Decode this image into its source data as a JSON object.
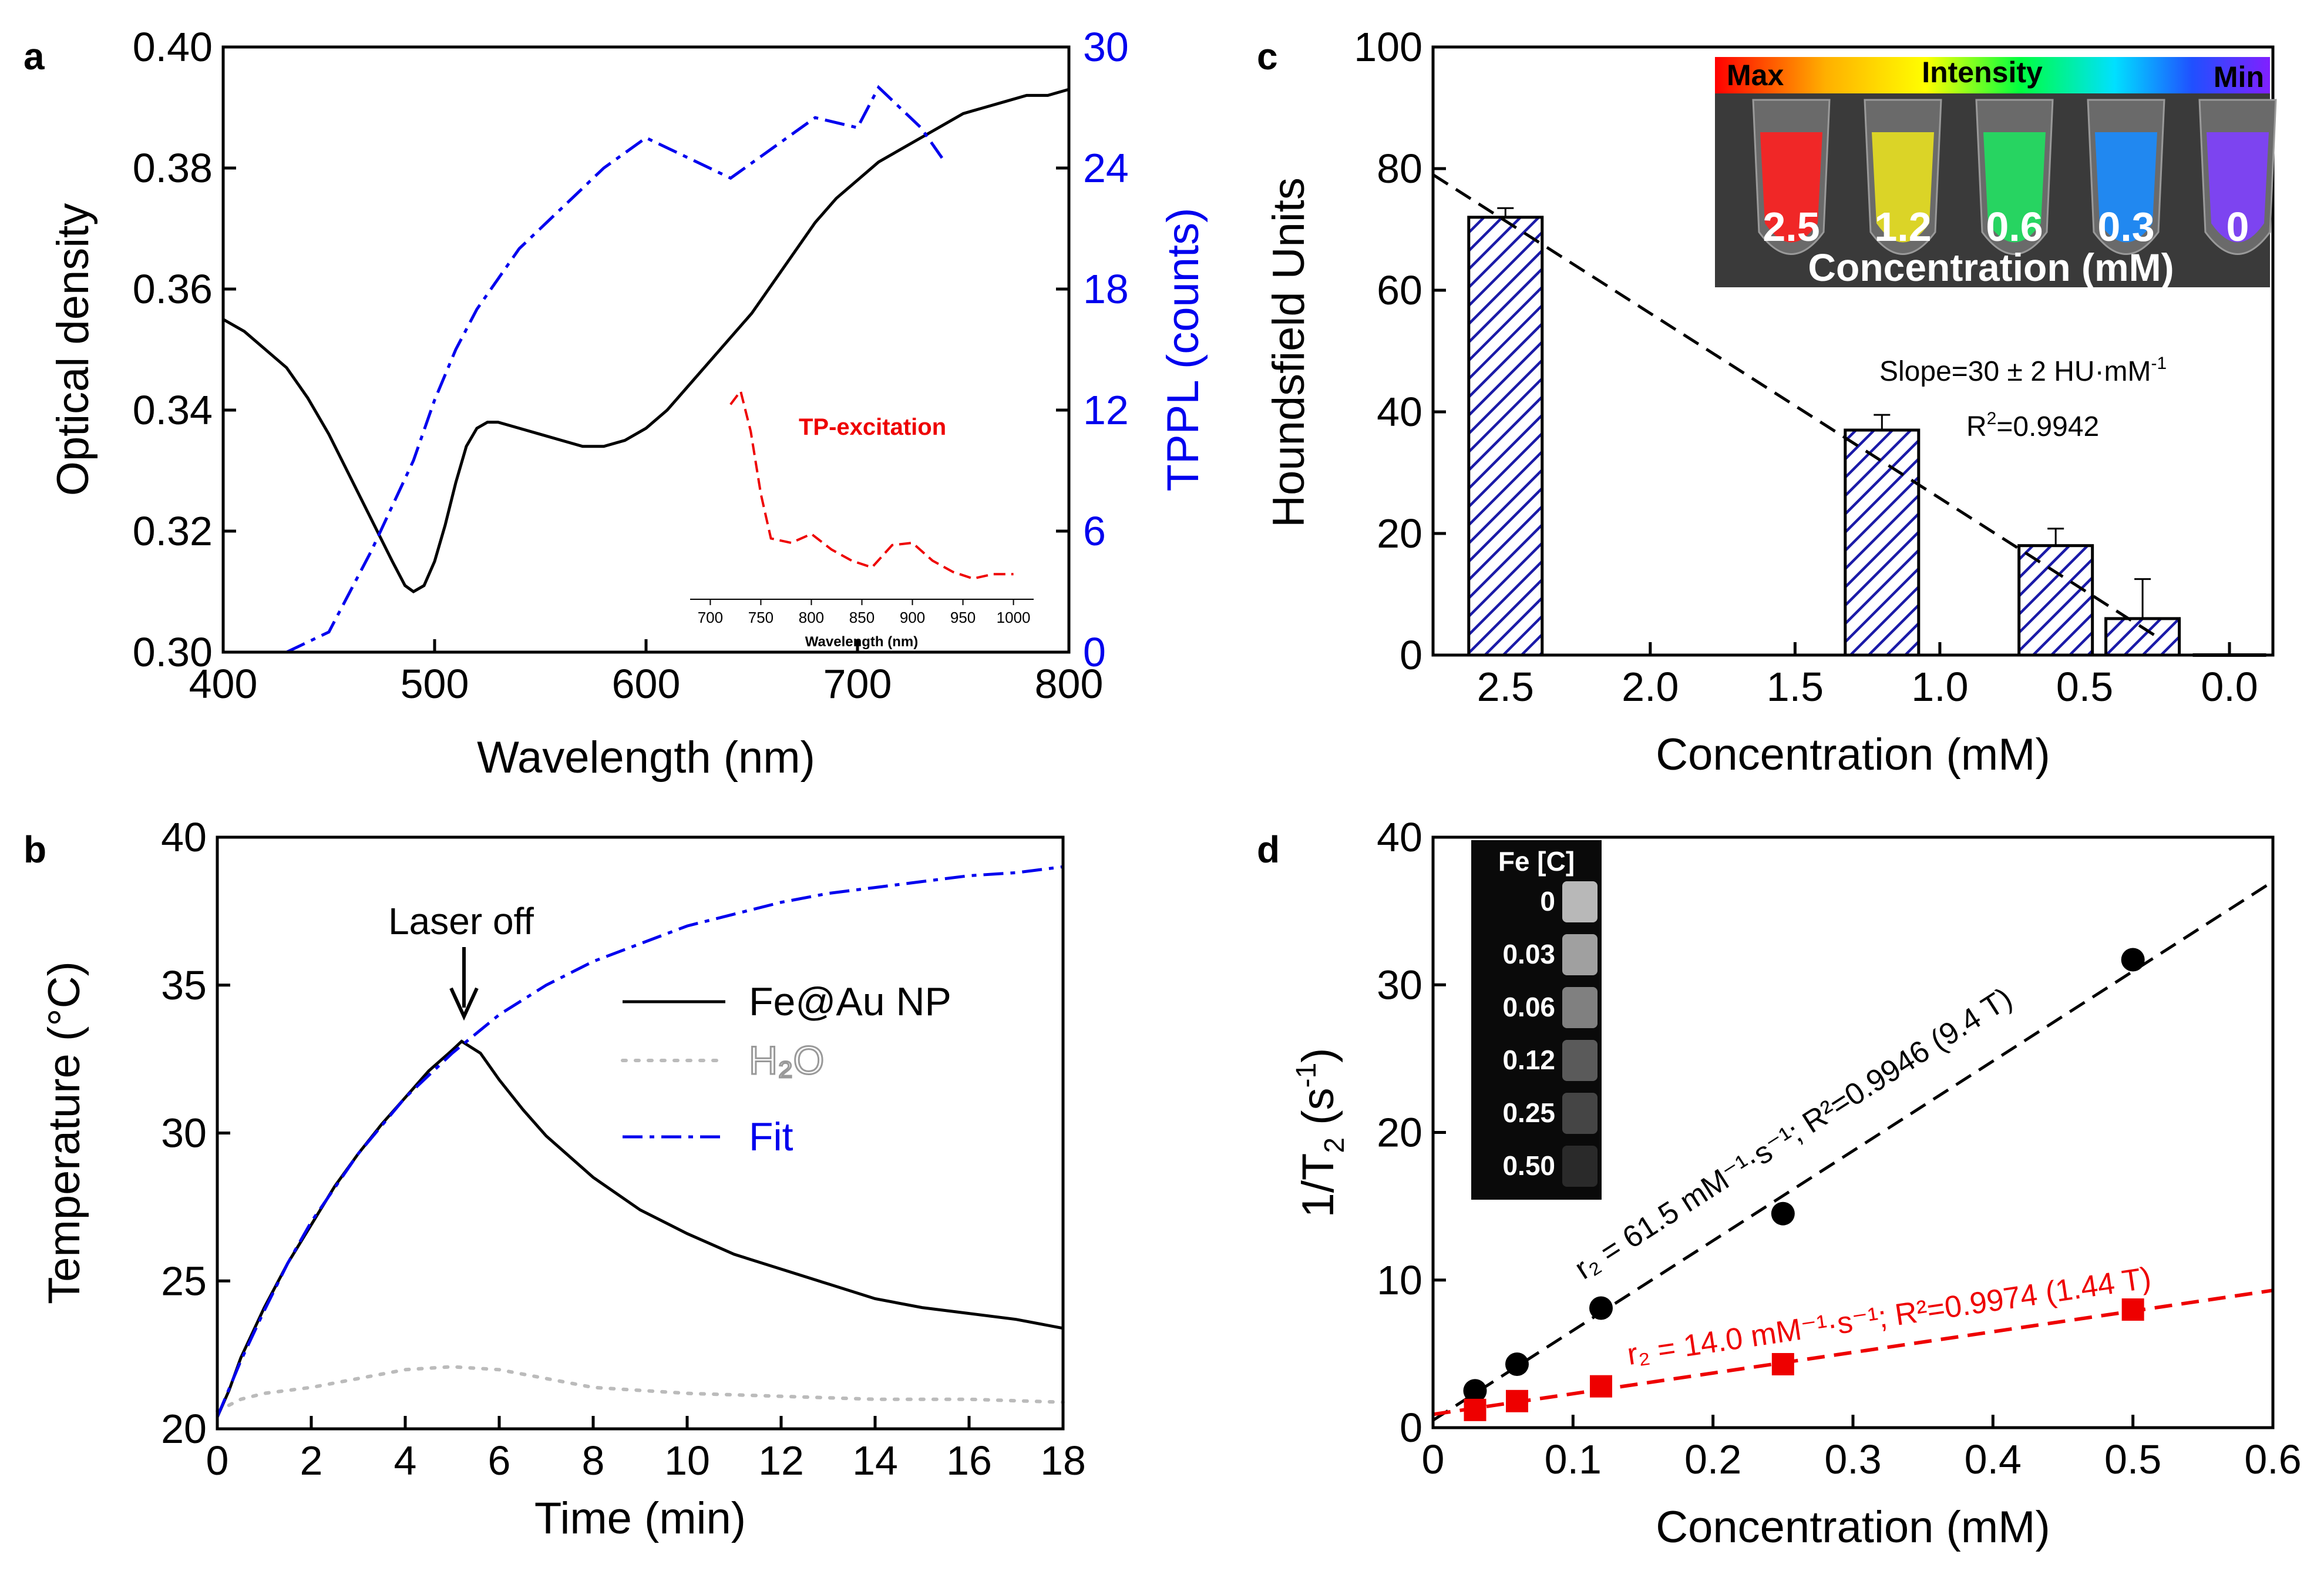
{
  "chart_data": [
    {
      "panel": "a",
      "type": "line",
      "xlabel": "Wavelength (nm)",
      "ylabel": "Optical density",
      "y2label": "TPPL (counts)",
      "xlim": [
        400,
        800
      ],
      "ylim": [
        0.3,
        0.4
      ],
      "y2lim": [
        0,
        30
      ],
      "xticks": [
        "400",
        "500",
        "600",
        "700",
        "800"
      ],
      "yticks": [
        "0.30",
        "0.32",
        "0.34",
        "0.36",
        "0.38",
        "0.40"
      ],
      "y2ticks": [
        "0",
        "6",
        "12",
        "18",
        "24",
        "30"
      ],
      "series": [
        {
          "name": "Optical density",
          "axis": "left",
          "color": "#000000",
          "style": "solid",
          "x": [
            400,
            410,
            420,
            430,
            440,
            450,
            460,
            470,
            480,
            486,
            490,
            495,
            500,
            505,
            510,
            515,
            520,
            525,
            530,
            540,
            550,
            560,
            570,
            580,
            590,
            600,
            610,
            620,
            630,
            640,
            650,
            660,
            670,
            680,
            690,
            700,
            710,
            720,
            730,
            740,
            750,
            760,
            770,
            780,
            790,
            800
          ],
          "y": [
            0.355,
            0.353,
            0.35,
            0.347,
            0.342,
            0.336,
            0.329,
            0.322,
            0.315,
            0.311,
            0.31,
            0.311,
            0.315,
            0.321,
            0.328,
            0.334,
            0.337,
            0.338,
            0.338,
            0.337,
            0.336,
            0.335,
            0.334,
            0.334,
            0.335,
            0.337,
            0.34,
            0.344,
            0.348,
            0.352,
            0.356,
            0.361,
            0.366,
            0.371,
            0.375,
            0.378,
            0.381,
            0.383,
            0.385,
            0.387,
            0.389,
            0.39,
            0.391,
            0.392,
            0.392,
            0.393
          ]
        },
        {
          "name": "TPPL",
          "axis": "right",
          "color": "#0000ee",
          "style": "dashdot",
          "x": [
            430,
            450,
            470,
            490,
            500,
            510,
            520,
            530,
            540,
            550,
            560,
            580,
            600,
            620,
            640,
            660,
            680,
            700,
            710,
            720,
            730,
            740
          ],
          "y": [
            0,
            1,
            5,
            9.5,
            12.5,
            15,
            17,
            18.5,
            20,
            21,
            22,
            24,
            25.5,
            24.5,
            23.5,
            25,
            26.5,
            26,
            28,
            27,
            26,
            24.5
          ]
        }
      ],
      "inset": {
        "name": "TP-excitation",
        "color": "#ee0000",
        "xlabel": "Wavelength (nm)",
        "xticks": [
          "700",
          "750",
          "800",
          "850",
          "900",
          "950",
          "1000"
        ],
        "xlim": [
          680,
          1020
        ],
        "ylim": [
          0,
          1
        ],
        "x": [
          720,
          730,
          740,
          750,
          760,
          780,
          800,
          820,
          840,
          860,
          880,
          900,
          920,
          940,
          960,
          980,
          1000
        ],
        "y": [
          0.82,
          0.88,
          0.7,
          0.42,
          0.22,
          0.2,
          0.24,
          0.17,
          0.12,
          0.09,
          0.19,
          0.2,
          0.12,
          0.07,
          0.04,
          0.06,
          0.06
        ]
      }
    },
    {
      "panel": "b",
      "type": "line",
      "xlabel": "Time (min)",
      "ylabel": "Temperature (°C)",
      "annotation": "Laser off",
      "xlim": [
        0,
        18
      ],
      "ylim": [
        20,
        40
      ],
      "xticks": [
        "0",
        "2",
        "4",
        "6",
        "8",
        "10",
        "12",
        "14",
        "16",
        "18"
      ],
      "yticks": [
        "20",
        "25",
        "30",
        "35",
        "40"
      ],
      "series": [
        {
          "name": "Fe@Au NP",
          "color": "#000000",
          "style": "solid",
          "x": [
            0,
            0.25,
            0.5,
            1,
            1.5,
            2,
            2.5,
            3,
            3.5,
            4,
            4.5,
            5,
            5.2,
            5.6,
            6,
            6.5,
            7,
            8,
            9,
            10,
            11,
            12,
            13,
            14,
            15,
            16,
            17,
            18
          ],
          "y": [
            20.4,
            21.3,
            22.4,
            24.1,
            25.6,
            26.9,
            28.2,
            29.3,
            30.3,
            31.2,
            32.1,
            32.8,
            33.1,
            32.7,
            31.8,
            30.8,
            29.9,
            28.5,
            27.4,
            26.6,
            25.9,
            25.4,
            24.9,
            24.4,
            24.1,
            23.9,
            23.7,
            23.4
          ]
        },
        {
          "name": "H₂O",
          "color": "#bbbbbb",
          "style": "dotted",
          "x": [
            0,
            0.5,
            1,
            2,
            3,
            4,
            5,
            6,
            7,
            8,
            9,
            10,
            12,
            14,
            16,
            18
          ],
          "y": [
            20.6,
            21.0,
            21.2,
            21.4,
            21.7,
            22.0,
            22.1,
            22.0,
            21.7,
            21.4,
            21.3,
            21.2,
            21.1,
            21.0,
            21.0,
            20.9
          ]
        },
        {
          "name": "Fit",
          "color": "#0000ee",
          "style": "dashdot",
          "x": [
            0,
            0.5,
            1,
            1.5,
            2,
            3,
            4,
            5,
            6,
            7,
            8,
            9,
            10,
            11,
            12,
            13,
            14,
            15,
            16,
            17,
            18
          ],
          "y": [
            20.4,
            22.3,
            24.0,
            25.6,
            27.0,
            29.3,
            31.2,
            32.7,
            34.0,
            35.0,
            35.8,
            36.4,
            37.0,
            37.4,
            37.8,
            38.1,
            38.3,
            38.5,
            38.7,
            38.8,
            39.0
          ]
        }
      ]
    },
    {
      "panel": "c",
      "type": "bar",
      "xlabel": "Concentration (mM)",
      "ylabel": "Houndsfield  Units",
      "xlim": [
        2.75,
        -0.15
      ],
      "ylim": [
        0,
        100
      ],
      "xticks": [
        "2.5",
        "2.0",
        "1.5",
        "1.0",
        "0.5",
        "0.0"
      ],
      "yticks": [
        "0",
        "20",
        "40",
        "60",
        "80",
        "100"
      ],
      "categories": [
        "2.5",
        "1.2",
        "0.6",
        "0.3",
        "0"
      ],
      "x": [
        2.5,
        1.2,
        0.6,
        0.3,
        0.0
      ],
      "values": [
        72,
        37,
        18,
        6,
        0
      ],
      "errors": [
        1.5,
        2.5,
        2.8,
        6.5,
        0
      ],
      "fit": {
        "slope_text": "Slope=30 ± 2 HU·mM",
        "slope_sup": "-1",
        "r2_text": "R",
        "r2_sup": "2",
        "r2_value": "=0.9942",
        "line_x": [
          2.75,
          0.25
        ],
        "line_y": [
          79,
          3
        ]
      },
      "inset": {
        "label_max": "Max",
        "label_intensity": "Intensity",
        "label_min": "Min",
        "tube_labels": [
          "2.5",
          "1.2",
          "0.6",
          "0.3",
          "0"
        ],
        "tube_colors": [
          "#ff2020",
          "#e8e020",
          "#20e060",
          "#1a8cff",
          "#8040ff"
        ],
        "caption": "Concentration (mM)"
      }
    },
    {
      "panel": "d",
      "type": "scatter",
      "xlabel": "Concentration (mM)",
      "ylabel": "1/T",
      "ylabel_sub": "2",
      "ylabel_tail": " (s",
      "ylabel_sup": "-1",
      "ylabel_end": ")",
      "xlim": [
        0,
        0.6
      ],
      "ylim": [
        0,
        40
      ],
      "xticks": [
        "0",
        "0.1",
        "0.2",
        "0.3",
        "0.4",
        "0.5",
        "0.6"
      ],
      "yticks": [
        "0",
        "10",
        "20",
        "30",
        "40"
      ],
      "series": [
        {
          "name": "9.4 T",
          "color": "#000000",
          "marker": "circle",
          "x": [
            0.03,
            0.06,
            0.12,
            0.25,
            0.5
          ],
          "y": [
            2.5,
            4.3,
            8.1,
            14.5,
            31.7
          ],
          "fit_x": [
            0,
            0.6
          ],
          "fit_y": [
            0.5,
            37.0
          ],
          "label": "r₂ = 61.5 mM⁻¹·s⁻¹; R²=0.9946 (9.4 T)"
        },
        {
          "name": "1.44 T",
          "color": "#ee0000",
          "marker": "square",
          "x": [
            0.03,
            0.06,
            0.12,
            0.25,
            0.5
          ],
          "y": [
            1.2,
            1.8,
            2.8,
            4.3,
            8.0
          ],
          "fit_x": [
            0,
            0.6
          ],
          "fit_y": [
            0.9,
            9.3
          ],
          "label": "r₂ = 14.0 mM⁻¹·s⁻¹; R²=0.9974 (1.44 T)"
        }
      ],
      "inset": {
        "title": "Fe [C]",
        "labels": [
          "0",
          "0.03",
          "0.06",
          "0.12",
          "0.25",
          "0.50"
        ],
        "grays": [
          "#b8b8b8",
          "#a0a0a0",
          "#808080",
          "#5a5a5a",
          "#454545",
          "#2a2a2a"
        ]
      }
    }
  ],
  "panel_labels": [
    "a",
    "b",
    "c",
    "d"
  ]
}
